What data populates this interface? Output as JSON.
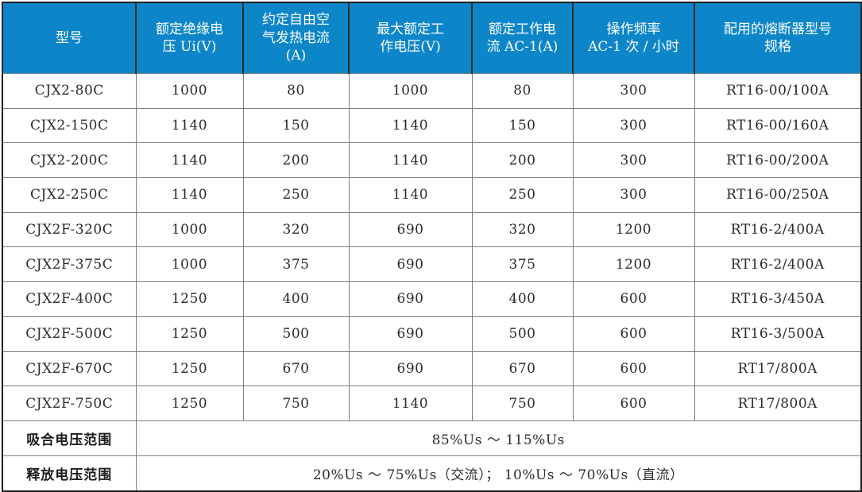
{
  "table": {
    "columns": [
      "型号",
      "额定绝缘电\n压 Ui(V)",
      "约定自由空\n气发热电流\n(A)",
      "最大额定工\n作电压(V)",
      "额定工作电\n流 AC-1(A)",
      "操作频率\nAC-1 次 / 小时",
      "配用的熔断器型号\n规格"
    ],
    "rows": [
      [
        "CJX2-80C",
        "1000",
        "80",
        "1000",
        "80",
        "300",
        "RT16-00/100A"
      ],
      [
        "CJX2-150C",
        "1140",
        "150",
        "1140",
        "150",
        "300",
        "RT16-00/160A"
      ],
      [
        "CJX2-200C",
        "1140",
        "200",
        "1140",
        "200",
        "300",
        "RT16-00/200A"
      ],
      [
        "CJX2-250C",
        "1140",
        "250",
        "1140",
        "250",
        "300",
        "RT16-00/250A"
      ],
      [
        "CJX2F-320C",
        "1000",
        "320",
        "690",
        "320",
        "1200",
        "RT16-2/400A"
      ],
      [
        "CJX2F-375C",
        "1000",
        "375",
        "690",
        "375",
        "1200",
        "RT16-2/400A"
      ],
      [
        "CJX2F-400C",
        "1250",
        "400",
        "690",
        "400",
        "600",
        "RT16-3/450A"
      ],
      [
        "CJX2F-500C",
        "1250",
        "500",
        "690",
        "500",
        "600",
        "RT16-3/500A"
      ],
      [
        "CJX2F-670C",
        "1250",
        "670",
        "690",
        "670",
        "600",
        "RT17/800A"
      ],
      [
        "CJX2F-750C",
        "1250",
        "750",
        "1140",
        "750",
        "600",
        "RT17/800A"
      ]
    ],
    "footer_rows": [
      {
        "label": "吸合电压范围",
        "value": "85%Us ～ 115%Us"
      },
      {
        "label": "释放电压范围",
        "value": "20%Us ～ 75%Us（交流）； 10%Us ～ 70%Us（直流）"
      }
    ],
    "colors": {
      "header_bg": "#0d86c9",
      "header_text": "#ffffff",
      "inner_border": "#7f7f7f",
      "outer_border": "#1f1f1f",
      "body_text": "#2b2b2b"
    }
  }
}
